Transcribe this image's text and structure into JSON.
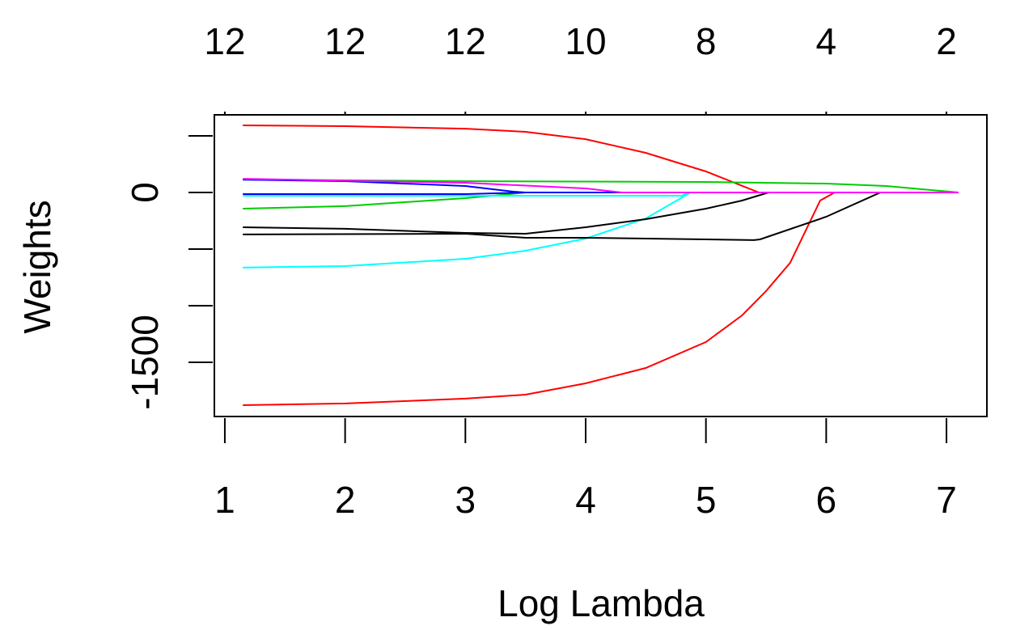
{
  "chart_data": {
    "type": "line",
    "xlabel": "Log Lambda",
    "ylabel": "Weights",
    "xlim": [
      0.913,
      7.336
    ],
    "ylim": [
      -1979,
      686
    ],
    "xticks": [
      1,
      2,
      3,
      4,
      5,
      6,
      7
    ],
    "top_labels": [
      12,
      12,
      12,
      10,
      8,
      4,
      2
    ],
    "yticks": [
      -1500,
      0
    ],
    "yticks_unlabeled": [
      -1000,
      -500,
      500
    ],
    "series": [
      {
        "color": "#ff0000",
        "x": [
          1.15,
          2,
          3,
          3.5,
          4,
          4.5,
          5,
          5.44,
          7.1
        ],
        "values": [
          593,
          586,
          564,
          536,
          471,
          350,
          186,
          0,
          0
        ]
      },
      {
        "color": "#ff0000",
        "x": [
          1.15,
          2,
          3,
          3.5,
          4,
          4.5,
          5,
          5.3,
          5.5,
          5.7,
          5.95,
          6.07,
          7.1
        ],
        "values": [
          -1879,
          -1864,
          -1821,
          -1786,
          -1686,
          -1550,
          -1321,
          -1086,
          -871,
          -621,
          -71,
          0,
          0
        ]
      },
      {
        "color": "#00cd00",
        "x": [
          1.15,
          3,
          5,
          6,
          6.5,
          7.1
        ],
        "values": [
          114,
          100,
          93,
          79,
          57,
          0
        ]
      },
      {
        "color": "#00cd00",
        "x": [
          1.15,
          2,
          3,
          3.3,
          3.5,
          7.1
        ],
        "values": [
          -143,
          -121,
          -50,
          -21,
          0,
          0
        ]
      },
      {
        "color": "#0000ff",
        "x": [
          1.15,
          2,
          3,
          3.4,
          3.5,
          7.1
        ],
        "values": [
          114,
          100,
          57,
          7,
          0,
          0
        ]
      },
      {
        "color": "#00ffff",
        "x": [
          1.15,
          2,
          3,
          3.5,
          4,
          4.5,
          4.85,
          4.87,
          7.1
        ],
        "values": [
          -664,
          -650,
          -586,
          -514,
          -407,
          -229,
          -14,
          0,
          0
        ]
      },
      {
        "color": "#00ffff",
        "x": [
          1.15,
          4.8,
          4.85,
          7.1
        ],
        "values": [
          -29,
          -29,
          0,
          0
        ]
      },
      {
        "color": "#000000",
        "x": [
          1.15,
          2,
          3,
          3.5,
          4,
          4.5,
          5,
          5.3,
          5.52,
          7.1
        ],
        "values": [
          -307,
          -321,
          -357,
          -364,
          -307,
          -236,
          -143,
          -71,
          0,
          0
        ]
      },
      {
        "color": "#000000",
        "x": [
          1.15,
          3,
          3.5,
          4,
          5,
          5.4,
          5.45,
          6,
          6.45,
          7.1
        ],
        "values": [
          -371,
          -364,
          -400,
          -400,
          -414,
          -421,
          -414,
          -214,
          0,
          0
        ]
      },
      {
        "color": "#0000ff",
        "x": [
          1.15,
          3,
          3.5,
          7.1
        ],
        "values": [
          -14,
          -14,
          0,
          0
        ]
      },
      {
        "color": "#ff00ff",
        "x": [
          1.15,
          3,
          4,
          4.3,
          7.1
        ],
        "values": [
          121,
          86,
          36,
          0,
          0
        ]
      }
    ]
  }
}
